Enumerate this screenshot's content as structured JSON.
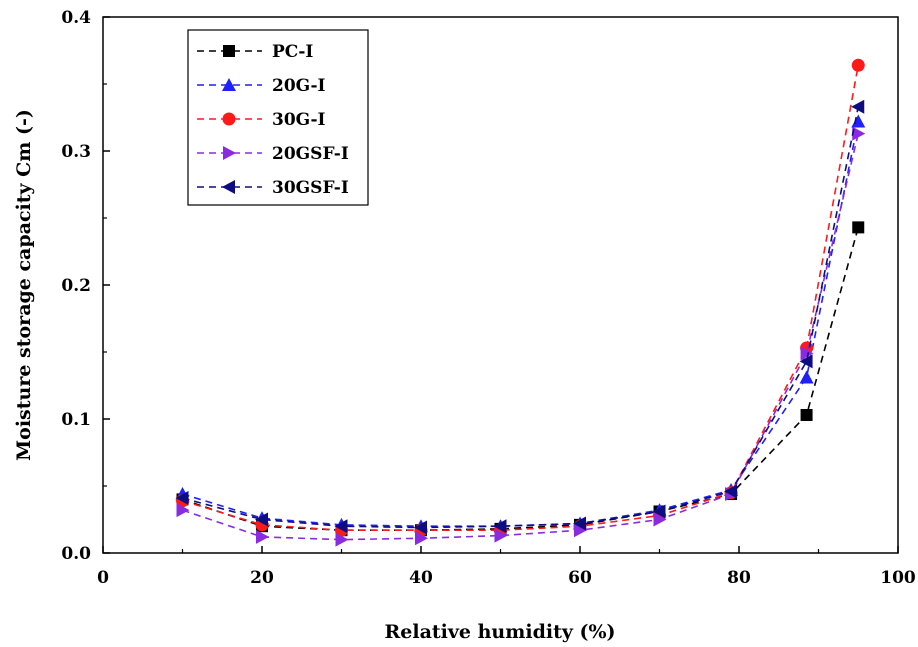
{
  "chart_data": {
    "type": "line",
    "title": "",
    "xlabel": "Relative humidity (%)",
    "ylabel": "Moisture storage capacity Cm (-)",
    "xlim": [
      0,
      100
    ],
    "ylim": [
      0.0,
      0.4
    ],
    "xticks": [
      0,
      20,
      40,
      60,
      80,
      100
    ],
    "yticks": [
      0.0,
      0.1,
      0.2,
      0.3,
      0.4
    ],
    "xtick_labels": [
      "0",
      "20",
      "40",
      "60",
      "80",
      "100"
    ],
    "ytick_labels": [
      "0.0",
      "0.1",
      "0.2",
      "0.3",
      "0.4"
    ],
    "grid": false,
    "legend_position": "top-left",
    "x": [
      10,
      20,
      30,
      40,
      50,
      60,
      70,
      79,
      88.5,
      95
    ],
    "series": [
      {
        "name": "PC-I",
        "color": "#000000",
        "marker": "square",
        "values": [
          0.04,
          0.02,
          0.017,
          0.017,
          0.018,
          0.021,
          0.031,
          0.044,
          0.103,
          0.243
        ]
      },
      {
        "name": "20G-I",
        "color": "#1f1fff",
        "marker": "triangle-up",
        "values": [
          0.044,
          0.026,
          0.021,
          0.02,
          0.02,
          0.022,
          0.032,
          0.047,
          0.131,
          0.322
        ]
      },
      {
        "name": "30G-I",
        "color": "#ff1a1a",
        "marker": "circle",
        "values": [
          0.039,
          0.021,
          0.017,
          0.017,
          0.017,
          0.02,
          0.028,
          0.045,
          0.153,
          0.364
        ]
      },
      {
        "name": "20GSF-I",
        "color": "#8a2be2",
        "marker": "triangle-right",
        "values": [
          0.032,
          0.012,
          0.01,
          0.011,
          0.013,
          0.017,
          0.025,
          0.044,
          0.149,
          0.313
        ]
      },
      {
        "name": "30GSF-I",
        "color": "#0d0d80",
        "marker": "triangle-left",
        "values": [
          0.041,
          0.025,
          0.02,
          0.019,
          0.02,
          0.022,
          0.031,
          0.046,
          0.143,
          0.333
        ]
      }
    ]
  }
}
